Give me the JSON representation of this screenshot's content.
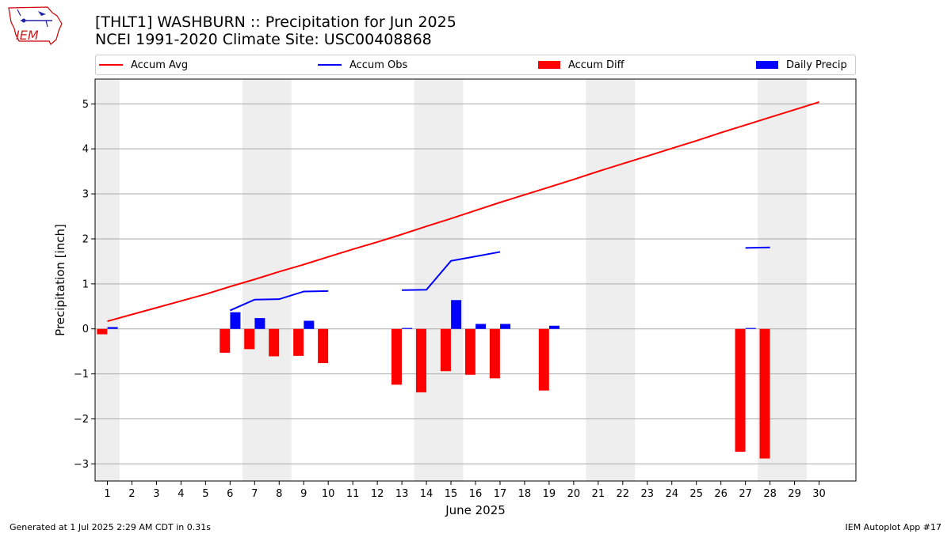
{
  "header": {
    "title_line1": "[THLT1] WASHBURN :: Precipitation for Jun 2025",
    "title_line2": "NCEI 1991-2020 Climate Site: USC00408868",
    "logo_text": "IEM"
  },
  "footer": {
    "left": "Generated at 1 Jul 2025 2:29 AM CDT in 0.31s",
    "right": "IEM Autoplot App #17"
  },
  "colors": {
    "accum_avg": "#ff0000",
    "accum_obs": "#0000ff",
    "accum_diff": "#ff0000",
    "daily_precip": "#0000ff",
    "weekend_shade": "#eeeeee",
    "grid": "#aaaaaa"
  },
  "chart_data": {
    "type": "bar",
    "xlabel": "June 2025",
    "ylabel": "Precipitation [inch]",
    "xlim": [
      0.5,
      31.5
    ],
    "ylim": [
      -3.38,
      5.55
    ],
    "x_ticks": [
      1,
      2,
      3,
      4,
      5,
      6,
      7,
      8,
      9,
      10,
      11,
      12,
      13,
      14,
      15,
      16,
      17,
      18,
      19,
      20,
      21,
      22,
      23,
      24,
      25,
      26,
      27,
      28,
      29,
      30
    ],
    "y_ticks": [
      -3,
      -2,
      -1,
      0,
      1,
      2,
      3,
      4,
      5
    ],
    "y_tick_labels": [
      "−3",
      "−2",
      "−1",
      "0",
      "1",
      "2",
      "3",
      "4",
      "5"
    ],
    "grid": "horizontal",
    "legend_position": "top",
    "weekend_shading": [
      [
        0.5,
        1.5
      ],
      [
        6.5,
        8.5
      ],
      [
        13.5,
        15.5
      ],
      [
        20.5,
        22.5
      ],
      [
        27.5,
        29.5
      ]
    ],
    "legend": [
      "Accum Avg",
      "Accum Obs",
      "Accum Diff",
      "Daily Precip"
    ],
    "series": [
      {
        "name": "Accum Avg",
        "type": "line",
        "x": [
          1,
          2,
          3,
          4,
          5,
          6,
          7,
          8,
          9,
          10,
          11,
          12,
          13,
          14,
          15,
          16,
          17,
          18,
          19,
          20,
          21,
          22,
          23,
          24,
          25,
          26,
          27,
          28,
          29,
          30
        ],
        "values": [
          0.17,
          0.32,
          0.47,
          0.62,
          0.77,
          0.94,
          1.1,
          1.27,
          1.43,
          1.6,
          1.77,
          1.93,
          2.1,
          2.28,
          2.45,
          2.63,
          2.81,
          2.98,
          3.15,
          3.32,
          3.5,
          3.67,
          3.84,
          4.01,
          4.18,
          4.36,
          4.53,
          4.7,
          4.87,
          5.04
        ]
      },
      {
        "name": "Accum Obs",
        "type": "line",
        "segments": [
          {
            "x": [
              6,
              7,
              8,
              9,
              10
            ],
            "values": [
              0.41,
              0.65,
              0.66,
              0.83,
              0.84
            ]
          },
          {
            "x": [
              13,
              14,
              15,
              16,
              17
            ],
            "values": [
              0.86,
              0.87,
              1.51,
              1.61,
              1.71
            ]
          },
          {
            "x": [
              27,
              28
            ],
            "values": [
              1.8,
              1.81
            ]
          }
        ]
      },
      {
        "name": "Accum Diff",
        "type": "bar",
        "x": [
          1,
          6,
          7,
          8,
          9,
          10,
          13,
          14,
          15,
          16,
          17,
          19,
          27,
          28
        ],
        "values": [
          -0.12,
          -0.53,
          -0.45,
          -0.61,
          -0.6,
          -0.76,
          -1.24,
          -1.41,
          -0.94,
          -1.02,
          -1.1,
          -1.37,
          -2.73,
          -2.88
        ]
      },
      {
        "name": "Daily Precip",
        "type": "bar",
        "x": [
          1,
          6,
          7,
          9,
          13,
          15,
          16,
          17,
          19,
          27
        ],
        "values": [
          0.04,
          0.37,
          0.24,
          0.18,
          0.02,
          0.64,
          0.11,
          0.11,
          0.07,
          0.02
        ]
      }
    ]
  }
}
